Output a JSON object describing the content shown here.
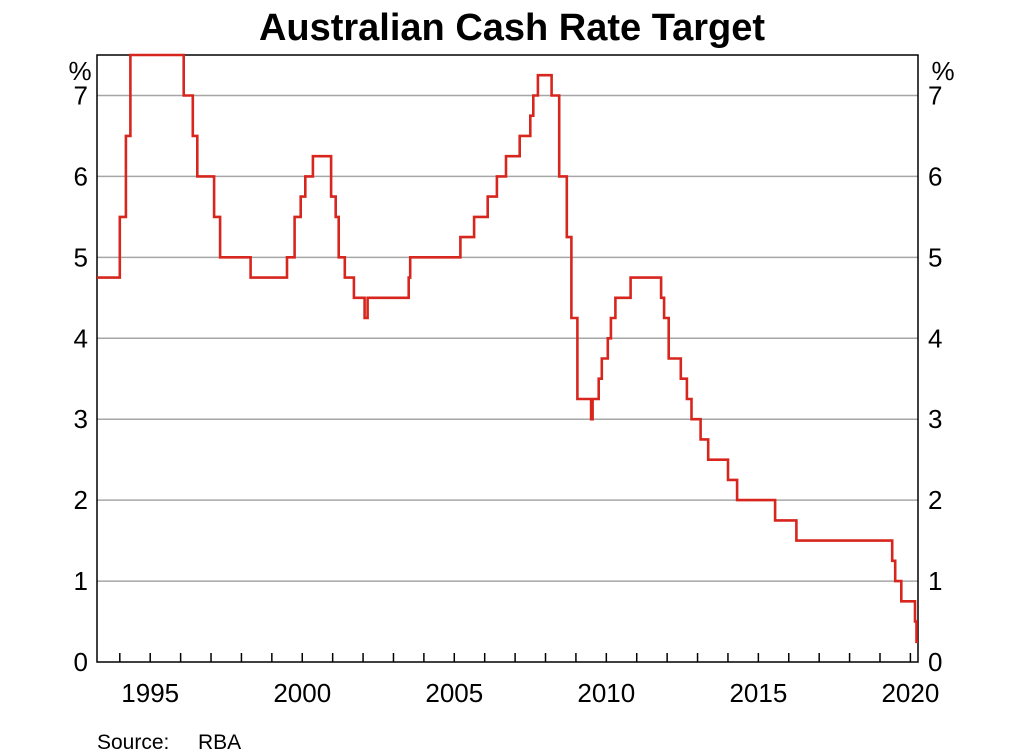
{
  "chart_data": {
    "type": "line",
    "title": "Australian Cash Rate Target",
    "ylabel_left": "%",
    "ylabel_right": "%",
    "source_label": "Source:",
    "source_value": "RBA",
    "xlim": [
      1993.25,
      2020.25
    ],
    "ylim": [
      0,
      7.5
    ],
    "x_ticks": [
      1995,
      2000,
      2005,
      2010,
      2015,
      2020
    ],
    "x_tick_labels": [
      "1995",
      "2000",
      "2005",
      "2010",
      "2015",
      "2020"
    ],
    "y_ticks": [
      0,
      1,
      2,
      3,
      4,
      5,
      6,
      7
    ],
    "y_tick_labels": [
      "0",
      "1",
      "2",
      "3",
      "4",
      "5",
      "6",
      "7"
    ],
    "grid": true,
    "series": [
      {
        "step": "post",
        "color": "#d7261e",
        "x": [
          1993.25,
          1994.0,
          1994.2,
          1994.35,
          1994.55,
          1996.1,
          1996.4,
          1996.55,
          1997.1,
          1997.3,
          1998.3,
          1999.5,
          1999.75,
          1999.95,
          2000.1,
          2000.35,
          2000.95,
          2001.1,
          2001.2,
          2001.4,
          2001.7,
          2002.05,
          2002.15,
          2003.5,
          2003.55,
          2005.2,
          2005.65,
          2006.1,
          2006.4,
          2006.7,
          2007.15,
          2007.5,
          2007.6,
          2007.75,
          2008.0,
          2008.2,
          2008.45,
          2008.7,
          2008.85,
          2009.05,
          2009.5,
          2009.55,
          2009.75,
          2009.85,
          2010.05,
          2010.15,
          2010.3,
          2010.45,
          2010.8,
          2011.8,
          2011.9,
          2012.05,
          2012.45,
          2012.65,
          2012.8,
          2013.1,
          2013.35,
          2013.7,
          2014.0,
          2014.3,
          2015.0,
          2015.25,
          2015.55,
          2016.25,
          2016.4,
          2016.6,
          2019.4,
          2019.5,
          2019.7,
          2019.95,
          2020.15,
          2020.2,
          2020.25
        ],
        "y": [
          4.75,
          5.5,
          6.5,
          7.5,
          7.5,
          7.0,
          6.5,
          6.0,
          5.5,
          5.0,
          4.75,
          5.0,
          5.5,
          5.75,
          6.0,
          6.25,
          5.75,
          5.5,
          5.0,
          4.75,
          4.5,
          4.25,
          4.5,
          4.75,
          5.0,
          5.25,
          5.5,
          5.75,
          6.0,
          6.25,
          6.5,
          6.75,
          7.0,
          7.25,
          7.25,
          7.0,
          6.0,
          5.25,
          4.25,
          3.25,
          3.0,
          3.25,
          3.5,
          3.75,
          4.0,
          4.25,
          4.5,
          4.5,
          4.75,
          4.5,
          4.25,
          3.75,
          3.5,
          3.25,
          3.0,
          2.75,
          2.5,
          2.5,
          2.25,
          2.0,
          2.0,
          2.0,
          1.75,
          1.5,
          1.5,
          1.5,
          1.25,
          1.0,
          0.75,
          0.75,
          0.5,
          0.25,
          0.25
        ]
      }
    ]
  }
}
